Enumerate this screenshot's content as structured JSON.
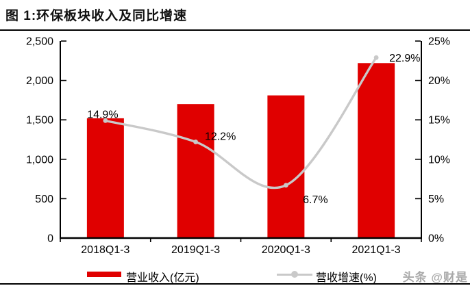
{
  "title": "图 1:环保板块收入及同比增速",
  "watermark": "头条 @财是",
  "colors": {
    "bar": "#e00000",
    "line": "#c9c9c9",
    "axis": "#000000",
    "background": "#ffffff"
  },
  "chart_data": {
    "type": "combo",
    "title": "环保板块收入及同比增速",
    "categories": [
      "2018Q1-3",
      "2019Q1-3",
      "2020Q1-3",
      "2021Q1-3"
    ],
    "series": [
      {
        "name": "营业收入(亿元)",
        "type": "bar",
        "axis": "left",
        "color": "#e00000",
        "values": [
          1520,
          1700,
          1810,
          2220
        ]
      },
      {
        "name": "营收增速(%)",
        "type": "line",
        "axis": "right",
        "color": "#c9c9c9",
        "values": [
          14.9,
          12.2,
          6.7,
          22.9
        ],
        "point_labels": [
          "14.9%",
          "12.2%",
          "6.7%",
          "22.9%"
        ]
      }
    ],
    "left_axis": {
      "min": 0,
      "max": 2500,
      "step": 500,
      "tick_labels": [
        "0",
        "500",
        "1,000",
        "1,500",
        "2,000",
        "2,500"
      ]
    },
    "right_axis": {
      "min": 0,
      "max": 25,
      "step": 5,
      "tick_labels": [
        "0%",
        "5%",
        "10%",
        "15%",
        "20%",
        "25%"
      ]
    },
    "legend_position": "bottom",
    "grid": false
  }
}
